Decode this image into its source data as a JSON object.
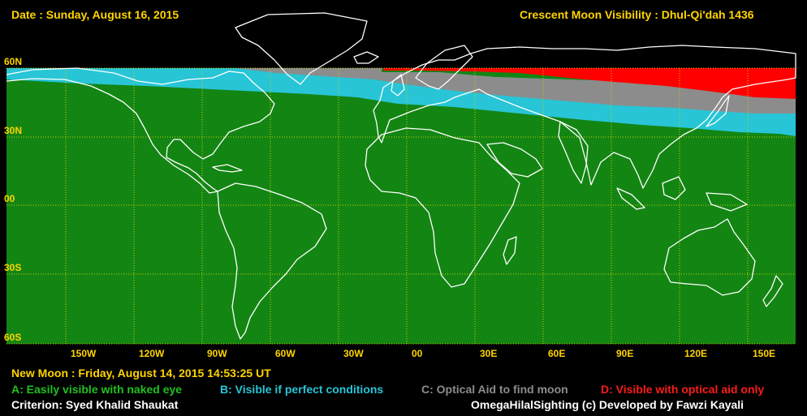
{
  "header": {
    "date": "Date : Sunday, August 16, 2015",
    "title": "Crescent Moon Visibility : Dhul-Qi'dah  1436"
  },
  "latitude_labels": [
    "60N",
    "30N",
    "00",
    "30S",
    "60S"
  ],
  "longitude_labels": [
    "150W",
    "120W",
    "90W",
    "60W",
    "30W",
    "00",
    "30E",
    "60E",
    "90E",
    "120E",
    "150E"
  ],
  "footer": {
    "new_moon": "New Moon : Friday, August 14, 2015  14:53:25  UT",
    "criterion": "Criterion: Syed Khalid Shaukat",
    "credit": "OmegaHilalSighting  (c)  Developed by Fawzi Kayali"
  },
  "legend": [
    {
      "code": "A",
      "label": "A: Easily visible with naked eye",
      "color": "#20c020"
    },
    {
      "code": "B",
      "label": "B: Visible if perfect conditions",
      "color": "#27c5d6"
    },
    {
      "code": "C",
      "label": "C: Optical Aid to find moon",
      "color": "#8c8c8c"
    },
    {
      "code": "D",
      "label": "D: Visible with optical aid only",
      "color": "#ff1a1a"
    }
  ],
  "colors": {
    "zone_a": "#138513",
    "zone_b": "#27c5d6",
    "zone_c": "#8c8c8c",
    "zone_d": "#ff0000",
    "gridline": "#c8d200",
    "coastline": "#ffffff",
    "label": "#ffd400",
    "background": "#000000"
  }
}
